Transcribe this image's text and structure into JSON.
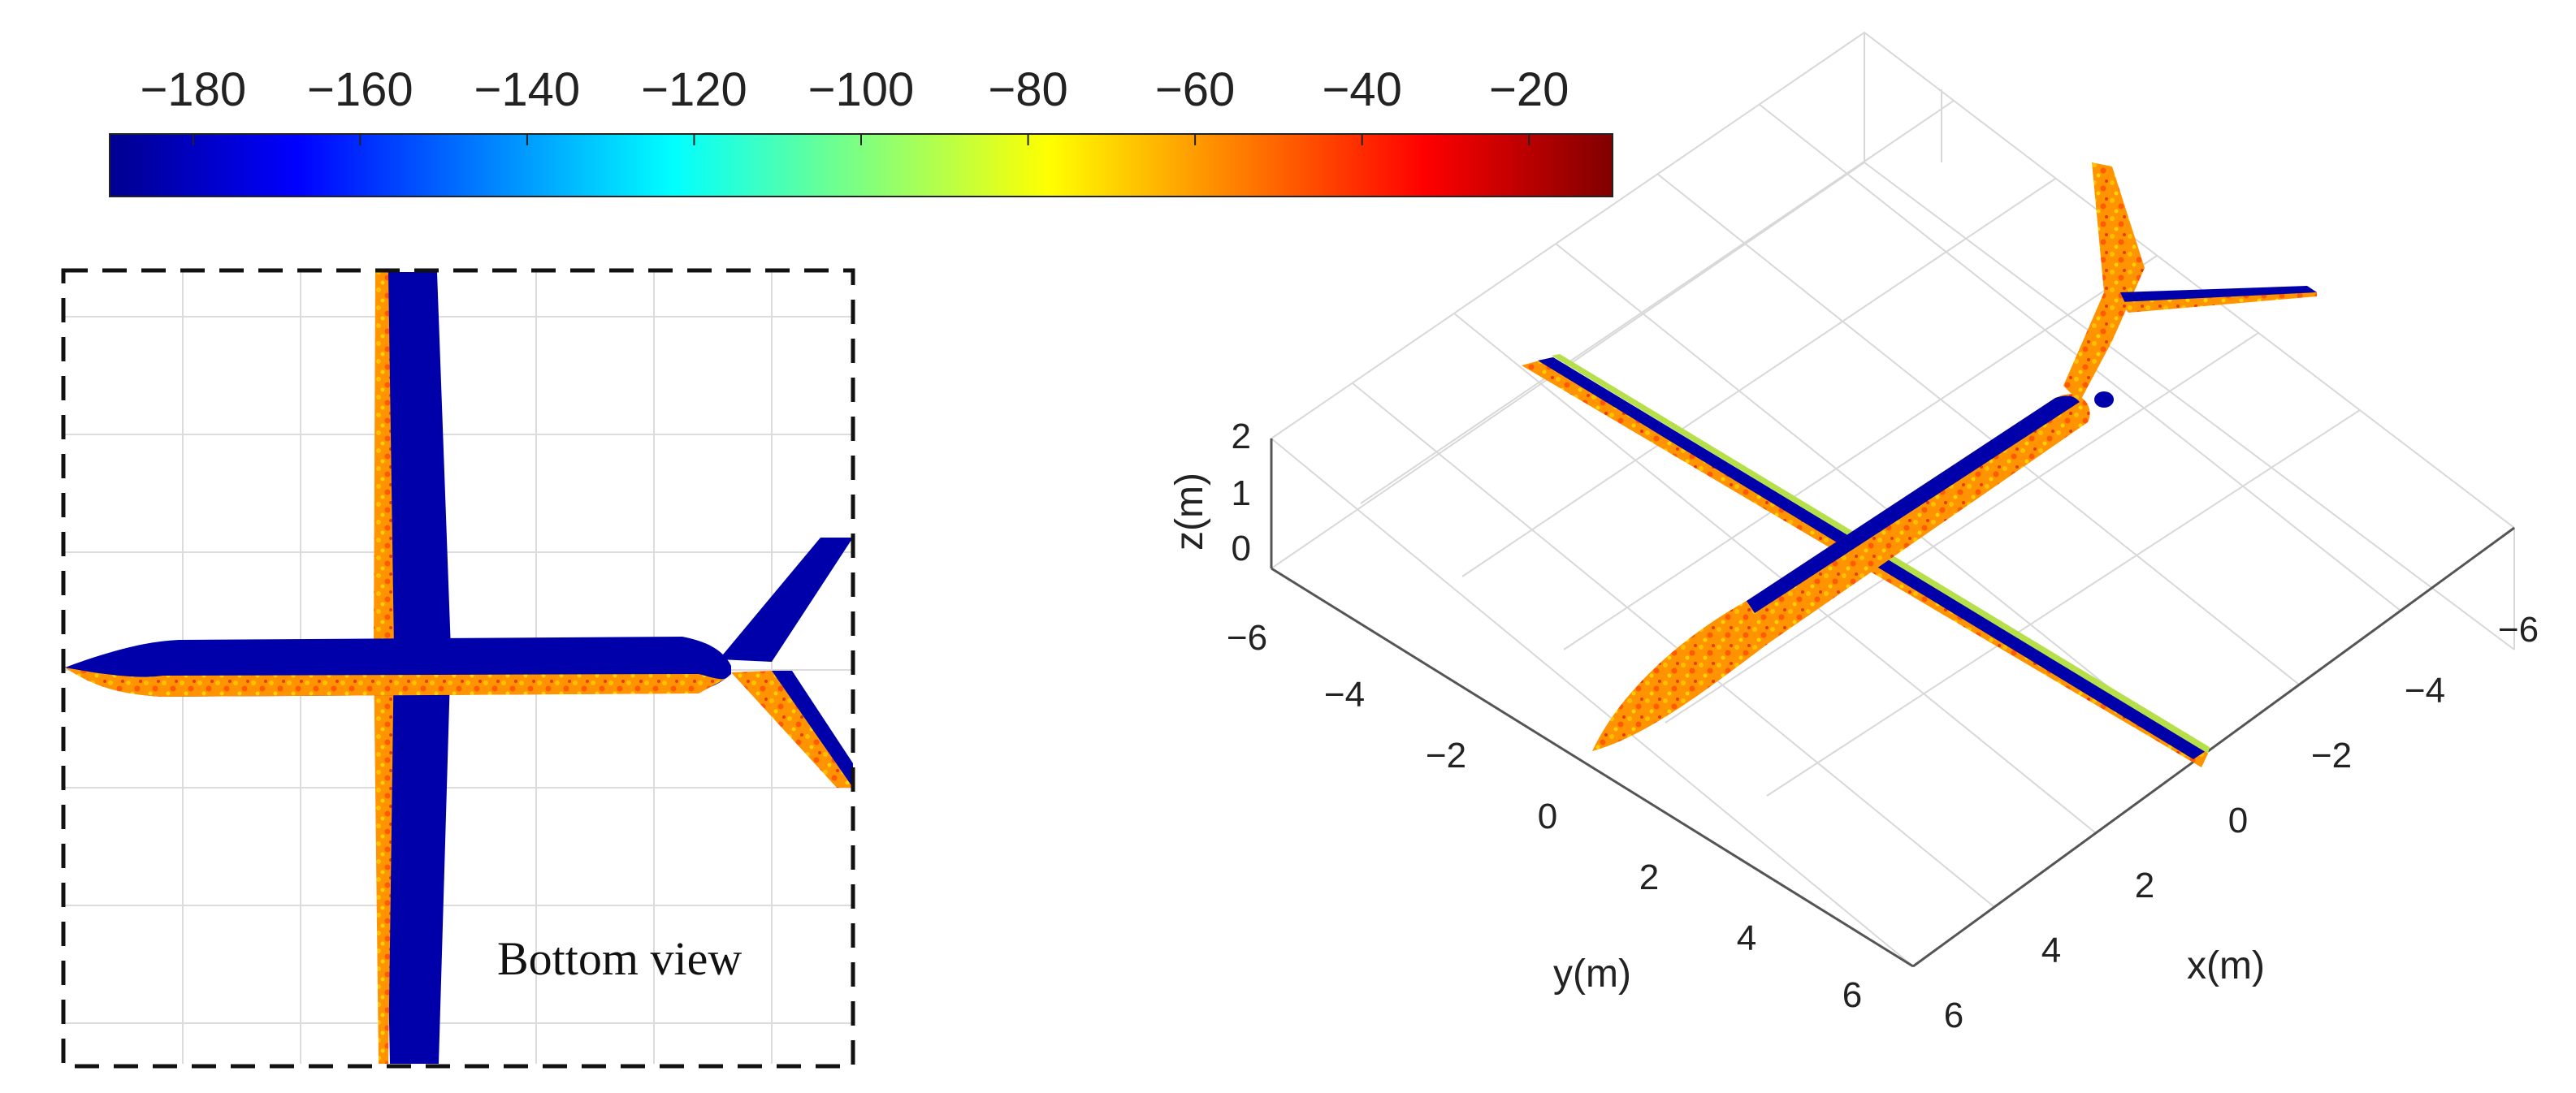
{
  "chart_data": [
    {
      "type": "colorbar",
      "colormap": "jet",
      "range": [
        -190,
        -10
      ],
      "ticks": [
        "−180",
        "−160",
        "−140",
        "−120",
        "−100",
        "−80",
        "−60",
        "−40",
        "−20"
      ],
      "tick_values": [
        -180,
        -160,
        -140,
        -120,
        -100,
        -80,
        -60,
        -40,
        -20
      ]
    },
    {
      "type": "3d-surface",
      "view": "bottom",
      "annotation": "Bottom view",
      "grid": true,
      "frame": "dashed"
    },
    {
      "type": "3d-surface",
      "view": "isometric",
      "grid": true,
      "xlabel": "x(m)",
      "ylabel": "y(m)",
      "zlabel": "z(m)",
      "x_ticks": [
        "−6",
        "−4",
        "−2",
        "0",
        "2",
        "4",
        "6"
      ],
      "y_ticks": [
        "−6",
        "−4",
        "−2",
        "0",
        "2",
        "4",
        "6"
      ],
      "z_ticks": [
        "0",
        "1",
        "2"
      ]
    }
  ]
}
